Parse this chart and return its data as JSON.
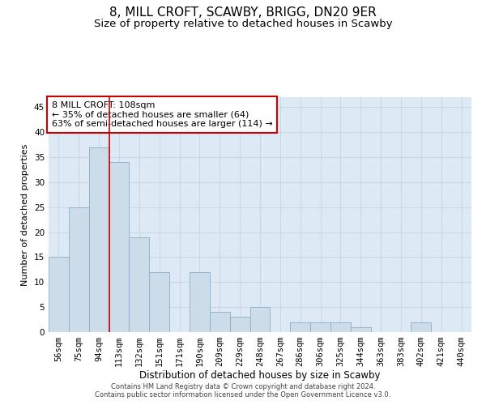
{
  "title": "8, MILL CROFT, SCAWBY, BRIGG, DN20 9ER",
  "subtitle": "Size of property relative to detached houses in Scawby",
  "xlabel": "Distribution of detached houses by size in Scawby",
  "ylabel": "Number of detached properties",
  "categories": [
    "56sqm",
    "75sqm",
    "94sqm",
    "113sqm",
    "132sqm",
    "151sqm",
    "171sqm",
    "190sqm",
    "209sqm",
    "229sqm",
    "248sqm",
    "267sqm",
    "286sqm",
    "306sqm",
    "325sqm",
    "344sqm",
    "363sqm",
    "383sqm",
    "402sqm",
    "421sqm",
    "440sqm"
  ],
  "values": [
    15,
    25,
    37,
    34,
    19,
    12,
    0,
    12,
    4,
    3,
    5,
    0,
    2,
    2,
    2,
    1,
    0,
    0,
    2,
    0,
    0
  ],
  "bar_color": "#ccdce8",
  "bar_edge_color": "#8baec8",
  "highlight_line_color": "#cc0000",
  "highlight_line_index": 2.5,
  "annotation_text": "8 MILL CROFT: 108sqm\n← 35% of detached houses are smaller (64)\n63% of semi-detached houses are larger (114) →",
  "annotation_box_facecolor": "#ffffff",
  "annotation_box_edgecolor": "#cc0000",
  "ylim": [
    0,
    47
  ],
  "yticks": [
    0,
    5,
    10,
    15,
    20,
    25,
    30,
    35,
    40,
    45
  ],
  "grid_color": "#c8d8e8",
  "bg_color": "#ddeaf5",
  "footer_line1": "Contains HM Land Registry data © Crown copyright and database right 2024.",
  "footer_line2": "Contains public sector information licensed under the Open Government Licence v3.0.",
  "title_fontsize": 11,
  "subtitle_fontsize": 9.5,
  "tick_fontsize": 7.5,
  "ylabel_fontsize": 8,
  "xlabel_fontsize": 8.5,
  "footer_fontsize": 6,
  "annotation_fontsize": 8
}
